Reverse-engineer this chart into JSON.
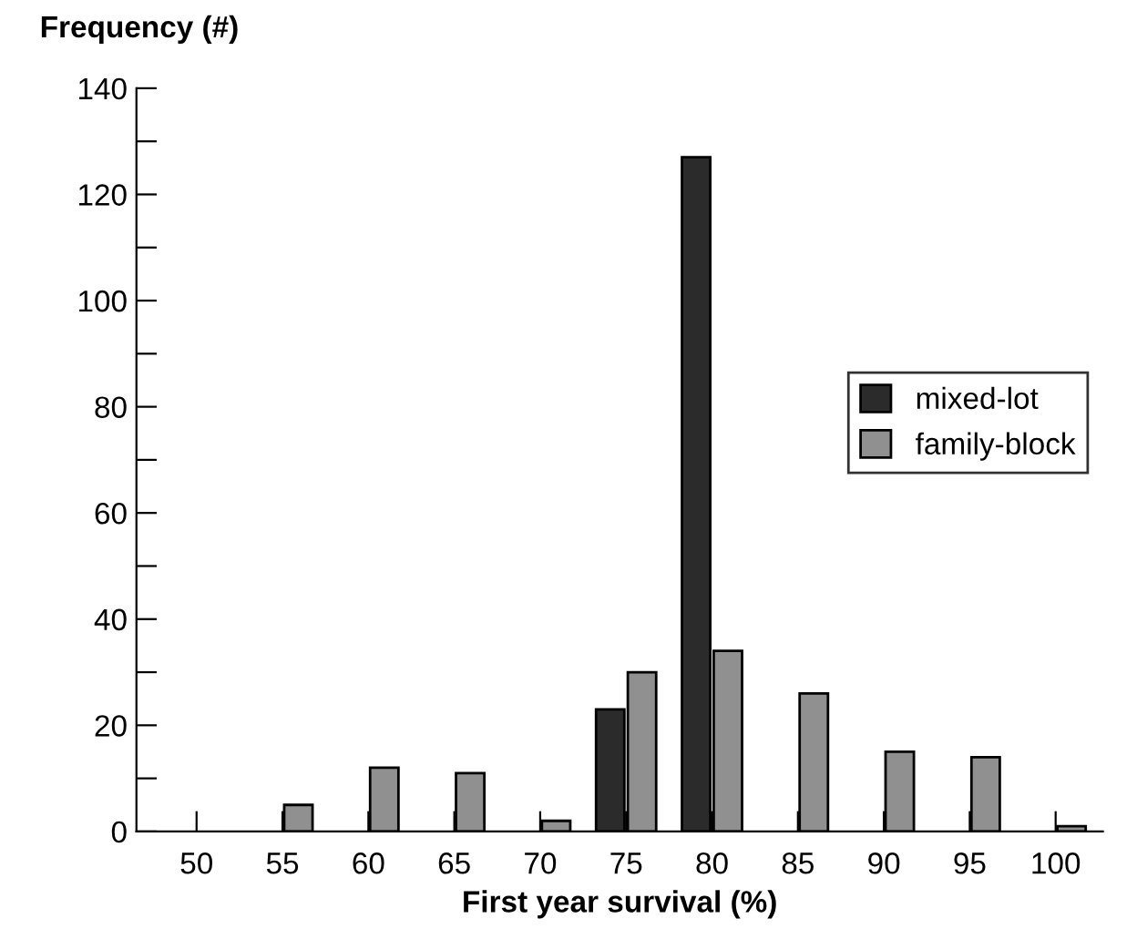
{
  "chart_data": {
    "type": "bar",
    "categories": [
      "50",
      "55",
      "60",
      "65",
      "70",
      "75",
      "80",
      "85",
      "90",
      "95",
      "100"
    ],
    "series": [
      {
        "name": "mixed-lot",
        "color": "#2b2b2b",
        "values": [
          null,
          null,
          null,
          null,
          null,
          23,
          127,
          null,
          null,
          null,
          null
        ]
      },
      {
        "name": "family-block",
        "color": "#909090",
        "values": [
          null,
          5,
          12,
          11,
          2,
          30,
          34,
          26,
          15,
          14,
          1
        ]
      }
    ],
    "xlabel": "First year survival (%)",
    "ylabel": "Frequency (#)",
    "ylim": [
      0,
      140
    ],
    "yticks": [
      0,
      {
        "value": 10,
        "label": null
      },
      20,
      {
        "value": 30,
        "label": null
      },
      40,
      {
        "value": 50,
        "label": null
      },
      60,
      {
        "value": 70,
        "label": null
      },
      80,
      {
        "value": 90,
        "label": null
      },
      100,
      {
        "value": 110,
        "label": null
      },
      120,
      {
        "value": 130,
        "label": null
      },
      140
    ],
    "grid": false,
    "legend": "right"
  }
}
